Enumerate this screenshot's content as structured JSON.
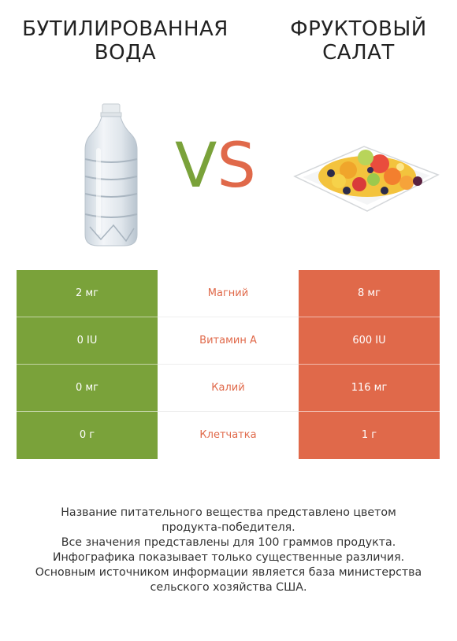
{
  "left": {
    "title_line1": "БУТИЛИРОВАННАЯ",
    "title_line2": "ВОДА",
    "icon": "water-bottle-icon",
    "color": "#7aa23a"
  },
  "right": {
    "title_line1": "ФРУКТОВЫЙ",
    "title_line2": "САЛАТ",
    "icon": "fruit-salad-icon",
    "color": "#e0694a"
  },
  "vs": {
    "v": "V",
    "s": "S"
  },
  "rows": [
    {
      "nutrient": "Магний",
      "left": "2 мг",
      "right": "8 мг"
    },
    {
      "nutrient": "Витамин A",
      "left": "0 IU",
      "right": "600 IU"
    },
    {
      "nutrient": "Калий",
      "left": "0 мг",
      "right": "116 мг"
    },
    {
      "nutrient": "Клетчатка",
      "left": "0 г",
      "right": "1 г"
    }
  ],
  "footer": {
    "lines": [
      "Название питательного вещества представлено цветом",
      "продукта-победителя.",
      "Все значения представлены для 100 граммов продукта.",
      "Инфографика показывает только существенные различия.",
      "Основным источником информации является база министерства",
      "сельского хозяйства США."
    ]
  }
}
